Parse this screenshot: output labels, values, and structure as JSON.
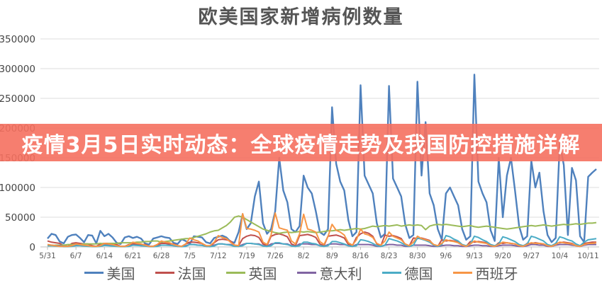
{
  "banner": {
    "text": "疫情3月5日实时动态：全球疫情走势及我国防控措施详解",
    "background_color": "#F5705F",
    "text_color": "#FFFFFF"
  },
  "chart_data": {
    "type": "line",
    "title": "欧美国家新增病例数量",
    "xlabel": "",
    "ylabel": "",
    "ylim": [
      0,
      350000
    ],
    "y_tick_step": 50000,
    "y_tick_labels": [
      "350000",
      "300000",
      "250000",
      "200000",
      "150000",
      "100000",
      "50000",
      "0"
    ],
    "x_tick_labels": [
      "5/31",
      "6/7",
      "6/14",
      "6/21",
      "6/28",
      "7/5",
      "7/12",
      "7/19",
      "7/26",
      "8/2",
      "8/9",
      "8/16",
      "8/23",
      "8/30",
      "9/6",
      "9/13",
      "9/20",
      "9/27",
      "10/4",
      "10/11"
    ],
    "x_tick_interval_days": 7,
    "grid": "horizontal",
    "legend_position": "bottom",
    "series": [
      {
        "name": "美国",
        "color": "#4F81BD",
        "values": [
          14000,
          22000,
          20000,
          9000,
          6000,
          17000,
          20000,
          21000,
          15000,
          8000,
          20000,
          19000,
          6000,
          27000,
          18000,
          22000,
          16000,
          7000,
          5000,
          16000,
          18000,
          15000,
          17000,
          14000,
          6000,
          4000,
          14000,
          16000,
          18000,
          16000,
          15000,
          7000,
          5000,
          13000,
          10000,
          5000,
          18000,
          17000,
          16000,
          8000,
          6000,
          15000,
          17000,
          19000,
          16000,
          9000,
          7000,
          25000,
          55000,
          30000,
          40000,
          85000,
          110000,
          40000,
          22000,
          30000,
          60000,
          150000,
          95000,
          75000,
          30000,
          25000,
          35000,
          120000,
          100000,
          90000,
          60000,
          25000,
          20000,
          30000,
          235000,
          140000,
          110000,
          95000,
          45000,
          18000,
          25000,
          272000,
          120000,
          105000,
          90000,
          40000,
          16000,
          22000,
          271000,
          115000,
          100000,
          85000,
          38000,
          15000,
          20000,
          278000,
          120000,
          210000,
          90000,
          70000,
          30000,
          12000,
          90000,
          100000,
          85000,
          70000,
          30000,
          12000,
          18000,
          290000,
          110000,
          90000,
          75000,
          28000,
          10000,
          150000,
          50000,
          120000,
          150000,
          95000,
          35000,
          12000,
          18000,
          145000,
          100000,
          125000,
          60000,
          20000,
          8000,
          15000,
          175000,
          138000,
          20000,
          133000,
          112000,
          18000,
          8000,
          118000,
          125000,
          131000
        ]
      },
      {
        "name": "法国",
        "color": "#C0504D",
        "values": [
          10000,
          8000,
          7000,
          6000,
          2000,
          1000,
          6000,
          7000,
          6000,
          5000,
          5000,
          2000,
          1000,
          5000,
          6000,
          6000,
          5000,
          4000,
          1000,
          1000,
          4000,
          5000,
          5000,
          4000,
          4000,
          1000,
          1000,
          4000,
          6000,
          6000,
          5000,
          5000,
          2000,
          1000,
          5000,
          8000,
          8000,
          7000,
          6000,
          2000,
          1000,
          7000,
          12000,
          13000,
          12000,
          10000,
          3000,
          2000,
          14000,
          18000,
          20000,
          19000,
          16000,
          5000,
          2000,
          18000,
          21000,
          22000,
          20000,
          17000,
          5000,
          2000,
          19000,
          20000,
          21000,
          19000,
          16000,
          5000,
          2000,
          18000,
          19000,
          20000,
          18000,
          15000,
          4000,
          2000,
          16000,
          22000,
          25000,
          23000,
          18000,
          5000,
          2000,
          20000,
          18000,
          19000,
          17000,
          14000,
          4000,
          2000,
          15000,
          14000,
          15000,
          13000,
          11000,
          3000,
          1000,
          12000,
          10000,
          11000,
          10000,
          8000,
          3000,
          1000,
          9000,
          8000,
          9000,
          8000,
          7000,
          2000,
          1000,
          7000,
          6000,
          7000,
          6000,
          5000,
          2000,
          1000,
          6000,
          6000,
          7000,
          6000,
          5000,
          2000,
          1000,
          6000,
          7000,
          8000,
          7000,
          6000,
          2000,
          1000,
          6000,
          7000,
          8000,
          8000
        ]
      },
      {
        "name": "英国",
        "color": "#9BBB59",
        "values": [
          2000,
          2000,
          3000,
          3000,
          3000,
          4000,
          4000,
          4000,
          4000,
          5000,
          5000,
          5000,
          5000,
          6000,
          5000,
          6000,
          6000,
          6000,
          7000,
          7000,
          7000,
          7000,
          8000,
          8000,
          9000,
          9000,
          10000,
          10000,
          8000,
          9000,
          10000,
          11000,
          12000,
          13000,
          14000,
          14000,
          16000,
          18000,
          20000,
          22000,
          25000,
          27000,
          28000,
          32000,
          36000,
          42000,
          50000,
          52000,
          50000,
          46000,
          42000,
          38000,
          34000,
          30000,
          28000,
          26000,
          24000,
          23000,
          24000,
          25000,
          24000,
          25000,
          26000,
          25000,
          26000,
          25000,
          24000,
          25000,
          26000,
          27000,
          27000,
          28000,
          29000,
          28000,
          29000,
          30000,
          31000,
          30000,
          31000,
          33000,
          35000,
          34000,
          35000,
          36000,
          35000,
          36000,
          37000,
          35000,
          36000,
          37000,
          36000,
          37000,
          36000,
          29000,
          35000,
          37000,
          38000,
          37000,
          38000,
          37000,
          36000,
          35000,
          34000,
          35000,
          36000,
          34000,
          33000,
          34000,
          35000,
          34000,
          33000,
          32000,
          31000,
          30000,
          31000,
          32000,
          33000,
          34000,
          35000,
          36000,
          35000,
          36000,
          37000,
          36000,
          35000,
          36000,
          37000,
          38000,
          37000,
          38000,
          39000,
          38000,
          39000,
          40000,
          40000,
          41000
        ]
      },
      {
        "name": "意大利",
        "color": "#8064A2",
        "values": [
          3000,
          3000,
          2000,
          2000,
          1000,
          1000,
          2000,
          3000,
          3000,
          2000,
          2000,
          1000,
          1000,
          2000,
          3000,
          3000,
          2000,
          2000,
          1000,
          1000,
          2000,
          3000,
          3000,
          2000,
          2000,
          1000,
          1000,
          2000,
          3000,
          3000,
          3000,
          2000,
          1000,
          1000,
          2000,
          4000,
          4000,
          3000,
          3000,
          1000,
          1000,
          3000,
          5000,
          5000,
          4000,
          4000,
          2000,
          1000,
          4000,
          6000,
          6000,
          5000,
          5000,
          2000,
          1000,
          5000,
          6000,
          6000,
          5000,
          5000,
          2000,
          1000,
          5000,
          5000,
          5000,
          4000,
          4000,
          2000,
          1000,
          4000,
          5000,
          5000,
          4000,
          4000,
          2000,
          1000,
          4000,
          4000,
          4000,
          4000,
          3000,
          1000,
          1000,
          3000,
          4000,
          4000,
          3000,
          3000,
          1000,
          1000,
          3000,
          3000,
          3000,
          3000,
          2000,
          1000,
          1000,
          2000,
          3000,
          3000,
          2000,
          2000,
          1000,
          1000,
          2000,
          3000,
          3000,
          2000,
          2000,
          1000,
          1000,
          2000,
          3000,
          3000,
          3000,
          2000,
          1000,
          1000,
          2000,
          4000,
          4000,
          3000,
          3000,
          1000,
          1000,
          3000,
          4000,
          4000,
          4000,
          3000,
          2000,
          1000,
          3000,
          4000,
          4000,
          4000
        ]
      },
      {
        "name": "德国",
        "color": "#4BACC6",
        "values": [
          2000,
          2000,
          1500,
          1000,
          500,
          500,
          1000,
          2000,
          2000,
          1500,
          1000,
          500,
          500,
          1000,
          2500,
          2000,
          1500,
          1000,
          500,
          500,
          1000,
          3000,
          2500,
          2000,
          1500,
          500,
          500,
          1000,
          3000,
          3000,
          2500,
          2000,
          1000,
          500,
          1000,
          4000,
          4000,
          3000,
          2500,
          1000,
          500,
          1500,
          5000,
          5000,
          4000,
          3000,
          1000,
          1000,
          2000,
          6000,
          6000,
          5000,
          4000,
          1500,
          1000,
          2000,
          7000,
          7000,
          5000,
          4000,
          1500,
          1000,
          2000,
          8000,
          8000,
          6000,
          5000,
          2000,
          1000,
          2000,
          9000,
          9000,
          7000,
          5000,
          2000,
          1000,
          2000,
          12000,
          11000,
          9000,
          6000,
          2000,
          1000,
          3000,
          14000,
          12000,
          10000,
          7000,
          3000,
          1000,
          3000,
          15000,
          13000,
          11000,
          8000,
          3000,
          1000,
          4000,
          19000,
          17000,
          13000,
          10000,
          4000,
          2000,
          5000,
          18000,
          16000,
          12000,
          9000,
          4000,
          2000,
          5000,
          17000,
          15000,
          12000,
          9000,
          4000,
          2000,
          5000,
          18000,
          16000,
          13000,
          10000,
          4000,
          2000,
          6000,
          17000,
          15000,
          12000,
          10000,
          5000,
          2000,
          8000,
          12000,
          13000,
          14000
        ]
      },
      {
        "name": "西班牙",
        "color": "#F79646",
        "values": [
          4000,
          3000,
          2000,
          1000,
          1000,
          1000,
          2000,
          5000,
          4000,
          3000,
          2000,
          1000,
          1000,
          2000,
          6000,
          5000,
          4000,
          2000,
          1000,
          1000,
          3000,
          8000,
          6000,
          5000,
          3000,
          1000,
          1000,
          4000,
          10000,
          8000,
          7000,
          4000,
          2000,
          1000,
          5000,
          15000,
          12000,
          10000,
          6000,
          2000,
          2000,
          8000,
          19000,
          16000,
          14000,
          8000,
          3000,
          2000,
          56000,
          31000,
          30000,
          28000,
          25000,
          8000,
          4000,
          20000,
          57000,
          32000,
          30000,
          28000,
          10000,
          5000,
          22000,
          55000,
          30000,
          28000,
          25000,
          9000,
          4000,
          18000,
          38000,
          28000,
          25000,
          20000,
          7000,
          3000,
          12000,
          30000,
          22000,
          20000,
          16000,
          6000,
          3000,
          10000,
          25000,
          18000,
          15000,
          12000,
          5000,
          2000,
          8000,
          18000,
          14000,
          12000,
          10000,
          4000,
          2000,
          6000,
          12000,
          10000,
          9000,
          7000,
          3000,
          1000,
          5000,
          10000,
          8000,
          7000,
          6000,
          2000,
          1000,
          4000,
          8000,
          7000,
          6000,
          5000,
          2000,
          1000,
          4000,
          7000,
          6000,
          6000,
          5000,
          2000,
          1000,
          4000,
          8000,
          7000,
          6000,
          5000,
          2000,
          1000,
          4000,
          6000,
          6000,
          7000
        ]
      }
    ]
  }
}
